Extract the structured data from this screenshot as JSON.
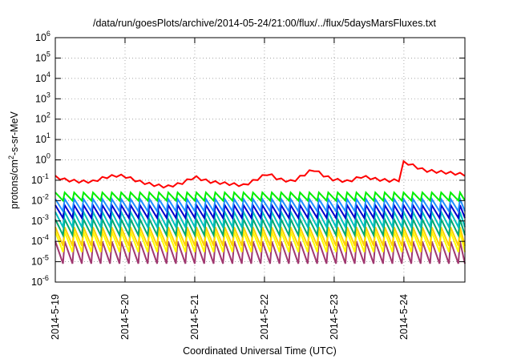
{
  "chart_data": {
    "type": "line",
    "title": "/data/run/goesPlots/archive/2014-05-24/21:00/flux/../flux/5daysMarsFluxes.txt",
    "xlabel": "Coordinated Universal Time (UTC)",
    "ylabel_parts": [
      "protons/cm",
      "2",
      "-s-sr-MeV"
    ],
    "y_scale": "log",
    "ylim": [
      1e-06,
      1000000.0
    ],
    "x_start": "2014-05-19",
    "x_end": "2014-05-24 21:00",
    "x_range_days": [
      0,
      5.875
    ],
    "grid": true,
    "grid_style": "dotted",
    "x_ticks": [
      "2014-5-19",
      "2014-5-20",
      "2014-5-21",
      "2014-5-22",
      "2014-5-23",
      "2014-5-24"
    ],
    "y_ticks": [
      {
        "value": 1e-06,
        "base": "10",
        "exp": "-6"
      },
      {
        "value": 1e-05,
        "base": "10",
        "exp": "-5"
      },
      {
        "value": 0.0001,
        "base": "10",
        "exp": "-4"
      },
      {
        "value": 0.001,
        "base": "10",
        "exp": "-3"
      },
      {
        "value": 0.01,
        "base": "10",
        "exp": "-2"
      },
      {
        "value": 0.1,
        "base": "10",
        "exp": "-1"
      },
      {
        "value": 1.0,
        "base": "10",
        "exp": "0"
      },
      {
        "value": 10.0,
        "base": "10",
        "exp": "1"
      },
      {
        "value": 100.0,
        "base": "10",
        "exp": "2"
      },
      {
        "value": 1000.0,
        "base": "10",
        "exp": "3"
      },
      {
        "value": 10000.0,
        "base": "10",
        "exp": "4"
      },
      {
        "value": 100000.0,
        "base": "10",
        "exp": "5"
      },
      {
        "value": 1000000.0,
        "base": "10",
        "exp": "6"
      }
    ],
    "sawtooth_period_days": 0.135,
    "series": [
      {
        "color": "#ff0000",
        "points": [
          [
            0.0,
            0.17
          ],
          [
            0.15,
            0.12
          ],
          [
            0.35,
            0.1
          ],
          [
            0.55,
            0.1
          ],
          [
            0.65,
            0.14
          ],
          [
            0.75,
            0.17
          ],
          [
            0.9,
            0.2
          ],
          [
            1.0,
            0.18
          ],
          [
            1.2,
            0.1
          ],
          [
            1.4,
            0.07
          ],
          [
            1.6,
            0.055
          ],
          [
            1.8,
            0.08
          ],
          [
            2.0,
            0.17
          ],
          [
            2.2,
            0.1
          ],
          [
            2.45,
            0.08
          ],
          [
            2.7,
            0.065
          ],
          [
            2.85,
            0.11
          ],
          [
            3.05,
            0.25
          ],
          [
            3.2,
            0.13
          ],
          [
            3.4,
            0.1
          ],
          [
            3.7,
            0.4
          ],
          [
            3.85,
            0.2
          ],
          [
            3.97,
            0.13
          ],
          [
            4.2,
            0.1
          ],
          [
            4.4,
            0.18
          ],
          [
            4.6,
            0.13
          ],
          [
            4.8,
            0.11
          ],
          [
            4.95,
            0.12
          ],
          [
            4.97,
            0.9
          ],
          [
            5.05,
            0.8
          ],
          [
            5.3,
            0.35
          ],
          [
            5.6,
            0.28
          ],
          [
            5.875,
            0.22
          ]
        ],
        "ripple": 1.35
      },
      {
        "color": "#00ee00",
        "low": 0.01,
        "high": 0.025
      },
      {
        "color": "#1e90ff",
        "low": 0.003,
        "high": 0.012
      },
      {
        "color": "#0000cc",
        "low": 0.0014,
        "high": 0.006
      },
      {
        "color": "#00bfbf",
        "low": 0.0005,
        "high": 0.0028
      },
      {
        "color": "#00a870",
        "low": 0.0002,
        "high": 0.0012
      },
      {
        "color": "#ffd000",
        "low": 6e-05,
        "high": 0.0005
      },
      {
        "color": "#ffff00",
        "low": 3e-05,
        "high": 0.0003
      },
      {
        "color": "#a03870",
        "low": 8e-06,
        "high": 0.0001
      }
    ]
  }
}
